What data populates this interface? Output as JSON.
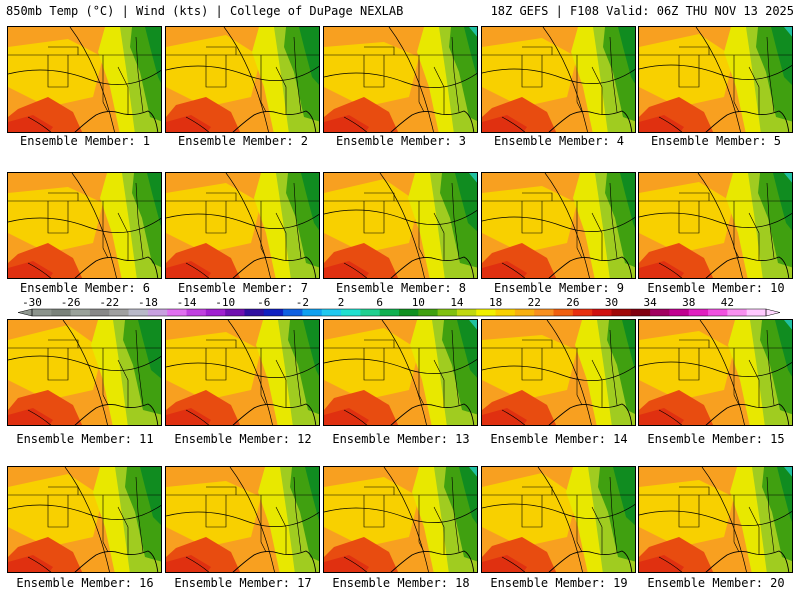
{
  "header": {
    "left": "850mb Temp (°C) | Wind (kts) | College of DuPage NEXLAB",
    "right": "18Z GEFS | F108 Valid: 06Z THU NOV 13 2025"
  },
  "caption_prefix": "Ensemble Member: ",
  "members": [
    {
      "label": "Ensemble Member: 1",
      "member": 1
    },
    {
      "label": "Ensemble Member: 2",
      "member": 2
    },
    {
      "label": "Ensemble Member: 3",
      "member": 3
    },
    {
      "label": "Ensemble Member: 4",
      "member": 4
    },
    {
      "label": "Ensemble Member: 5",
      "member": 5
    },
    {
      "label": "Ensemble Member: 6",
      "member": 6
    },
    {
      "label": "Ensemble Member: 7",
      "member": 7
    },
    {
      "label": "Ensemble Member: 8",
      "member": 8
    },
    {
      "label": "Ensemble Member: 9",
      "member": 9
    },
    {
      "label": "Ensemble Member: 10",
      "member": 10
    },
    {
      "label": "Ensemble Member: 11",
      "member": 11
    },
    {
      "label": "Ensemble Member: 12",
      "member": 12
    },
    {
      "label": "Ensemble Member: 13",
      "member": 13
    },
    {
      "label": "Ensemble Member: 14",
      "member": 14
    },
    {
      "label": "Ensemble Member: 15",
      "member": 15
    },
    {
      "label": "Ensemble Member: 16",
      "member": 16
    },
    {
      "label": "Ensemble Member: 17",
      "member": 17
    },
    {
      "label": "Ensemble Member: 18",
      "member": 18
    },
    {
      "label": "Ensemble Member: 19",
      "member": 19
    },
    {
      "label": "Ensemble Member: 20",
      "member": 20
    }
  ],
  "colorbar": {
    "ticks": [
      "-30",
      "-26",
      "-22",
      "-18",
      "-14",
      "-10",
      "-6",
      "-2",
      "2",
      "6",
      "10",
      "14",
      "18",
      "22",
      "26",
      "30",
      "34",
      "38",
      "42"
    ],
    "colors": [
      "#8c948c",
      "#7a827a",
      "#9aa29a",
      "#888888",
      "#a0a0a0",
      "#b8b8c8",
      "#c8a0e0",
      "#e070f0",
      "#c040e0",
      "#a020d0",
      "#7010b0",
      "#3010a0",
      "#1020c0",
      "#1060e0",
      "#10a0f0",
      "#20c8f0",
      "#20e0d0",
      "#20d090",
      "#10b050",
      "#109020",
      "#40a010",
      "#80c010",
      "#c0d810",
      "#f0f000",
      "#f8d000",
      "#f8b010",
      "#f89020",
      "#f06010",
      "#e83010",
      "#d01010",
      "#a00808",
      "#800010",
      "#a00060",
      "#c00090",
      "#e020c0",
      "#f050e0",
      "#f890f0",
      "#ffc8ff"
    ]
  },
  "map_colors": {
    "hot": "#e84c10",
    "warm": "#f8a020",
    "mid": "#f8d000",
    "yellow": "#e8e800",
    "lime": "#a0cc20",
    "green": "#40a010",
    "dark": "#108c20",
    "teal": "#20c0a0"
  }
}
